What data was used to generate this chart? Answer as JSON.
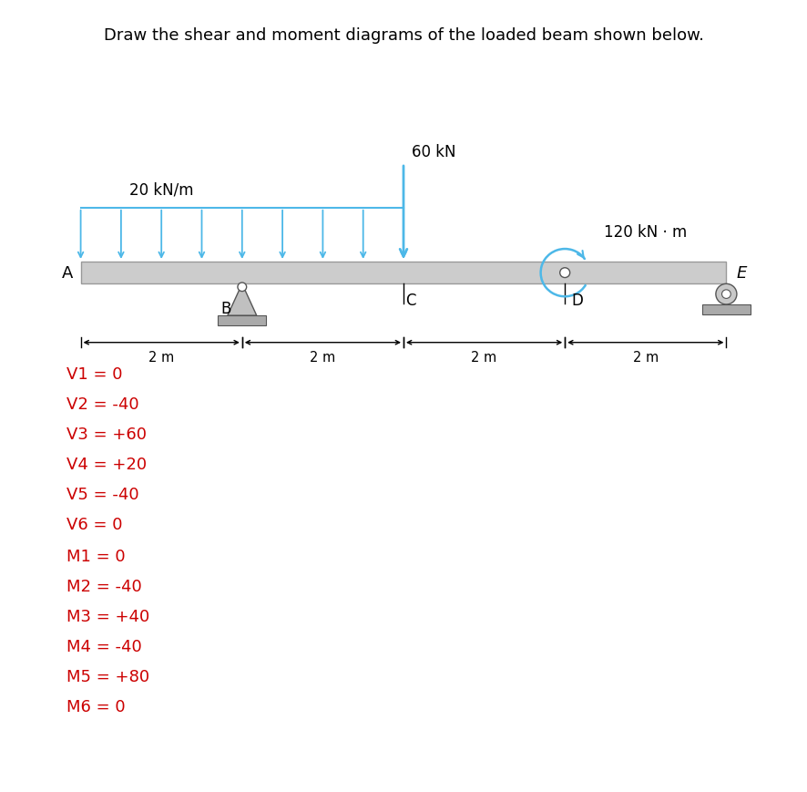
{
  "title": "Draw the shear and moment diagrams of the loaded beam shown below.",
  "title_color": "#000000",
  "title_fontsize": 13,
  "beam_color": "#cccccc",
  "beam_edge_color": "#999999",
  "load_color": "#4db8e8",
  "text_color": "#cc0000",
  "label_color": "#000000",
  "dist_load_label": "20 kN/m",
  "point_load_label": "60 kN",
  "moment_label": "120 kN · m",
  "dim_labels": [
    "2 m",
    "2 m",
    "2 m",
    "2 m"
  ],
  "shear_labels": [
    "V1 = 0",
    "V2 = -40",
    "V3 = +60",
    "V4 = +20",
    "V5 = -40",
    "V6 = 0"
  ],
  "moment_labels": [
    "M1 = 0",
    "M2 = -40",
    "M3 = +40",
    "M4 = -40",
    "M5 = +80",
    "M6 = 0"
  ]
}
